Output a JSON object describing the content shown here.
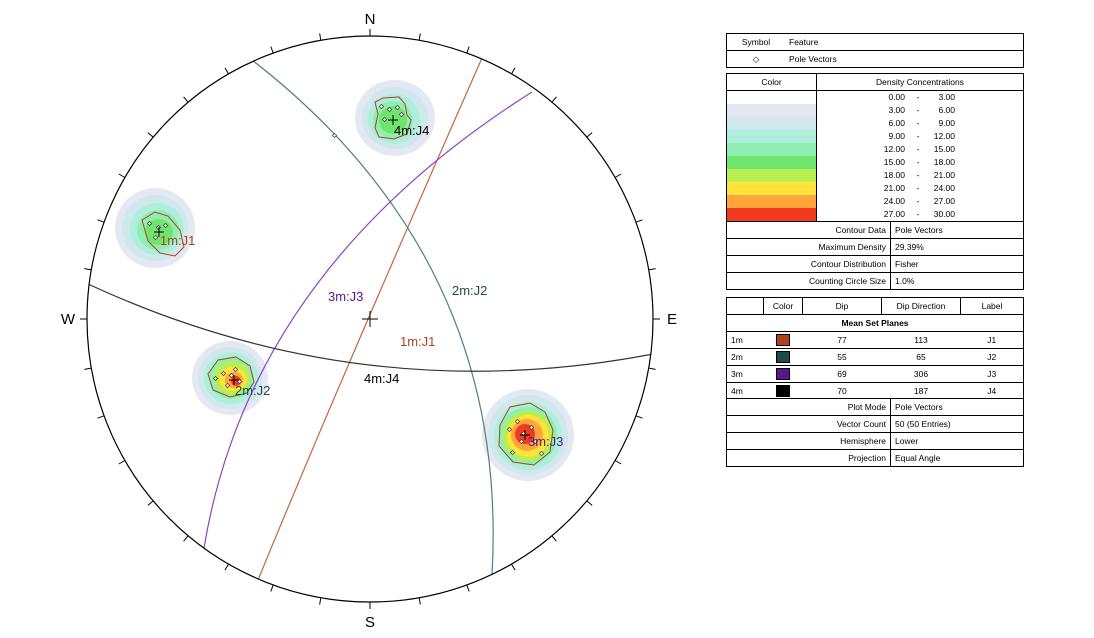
{
  "compass": {
    "north": "N",
    "south": "S",
    "east": "E",
    "west": "W"
  },
  "planes": [
    {
      "id": "1m",
      "label": "1m:J1",
      "dip": 77,
      "dip_direction": 113,
      "set": "J1",
      "color": "#b2401a",
      "line_color": "#c4663d"
    },
    {
      "id": "2m",
      "label": "2m:J2",
      "dip": 55,
      "dip_direction": 65,
      "set": "J2",
      "color": "#1e4a4a",
      "line_color": "#4e7f7f"
    },
    {
      "id": "3m",
      "label": "3m:J3",
      "dip": 69,
      "dip_direction": 306,
      "set": "J3",
      "color": "#5a168a",
      "line_color": "#8a45c4"
    },
    {
      "id": "4m",
      "label": "4m:J4",
      "dip": 70,
      "dip_direction": 187,
      "set": "J4",
      "color": "#000000",
      "line_color": "#333333"
    }
  ],
  "pole_labels": [
    "1m:J1",
    "2m:J2",
    "3m:J3",
    "4m:J4"
  ],
  "symbol_legend": {
    "header_symbol": "Symbol",
    "header_feature": "Feature",
    "symbol_glyph": "◇",
    "feature": "Pole Vectors"
  },
  "density": {
    "header_color": "Color",
    "header_conc": "Density Concentrations",
    "ranges": [
      {
        "from": "0.00",
        "to": "3.00",
        "color": "#ffffff"
      },
      {
        "from": "3.00",
        "to": "6.00",
        "color": "#e3e8f2"
      },
      {
        "from": "6.00",
        "to": "9.00",
        "color": "#d0e8ec"
      },
      {
        "from": "9.00",
        "to": "12.00",
        "color": "#aeeedc"
      },
      {
        "from": "12.00",
        "to": "15.00",
        "color": "#8fefb3"
      },
      {
        "from": "15.00",
        "to": "18.00",
        "color": "#6fe56f"
      },
      {
        "from": "18.00",
        "to": "21.00",
        "color": "#b9ef4e"
      },
      {
        "from": "21.00",
        "to": "24.00",
        "color": "#ffe23a"
      },
      {
        "from": "24.00",
        "to": "27.00",
        "color": "#ffa53a"
      },
      {
        "from": "27.00",
        "to": "30.00",
        "color": "#f23a1e"
      }
    ],
    "separator": "-"
  },
  "contour": {
    "rows": [
      {
        "label": "Contour Data",
        "value": "Pole Vectors"
      },
      {
        "label": "Maximum Density",
        "value": "29.39%"
      },
      {
        "label": "Contour Distribution",
        "value": "Fisher"
      },
      {
        "label": "Counting Circle Size",
        "value": "1.0%"
      }
    ]
  },
  "mean_set": {
    "headers": {
      "color": "Color",
      "dip": "Dip",
      "dip_direction": "Dip Direction",
      "label": "Label"
    },
    "title": "Mean Set Planes"
  },
  "plot_info": {
    "rows": [
      {
        "label": "Plot Mode",
        "value": "Pole Vectors"
      },
      {
        "label": "Vector Count",
        "value": "50 (50 Entries)"
      },
      {
        "label": "Hemisphere",
        "value": "Lower"
      },
      {
        "label": "Projection",
        "value": "Equal Angle"
      }
    ]
  }
}
